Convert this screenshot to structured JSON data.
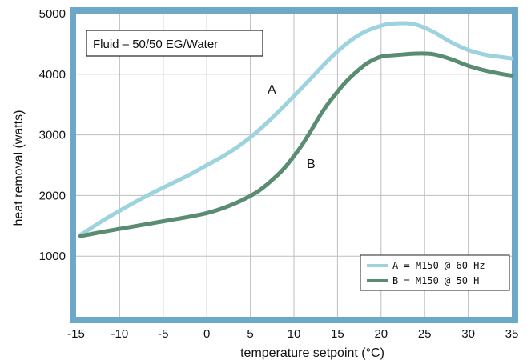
{
  "chart_data": {
    "type": "line",
    "title": "",
    "xlabel": "temperature setpoint (°C)",
    "ylabel": "heat removal (watts)",
    "xlim": [
      -15,
      35
    ],
    "ylim": [
      0,
      5000
    ],
    "xticks": [
      -15,
      -10,
      -5,
      0,
      5,
      10,
      15,
      20,
      25,
      30,
      35
    ],
    "yticks": [
      1000,
      2000,
      3000,
      4000,
      5000
    ],
    "grid": true,
    "annotation": "Fluid – 50/50 EG/Water",
    "legend_position": "bottom-right",
    "series": [
      {
        "name": "A = M150 @ 60 Hz",
        "label": "A",
        "color": "#9dd3df",
        "x": [
          -14.5,
          -12,
          -10,
          -8,
          -6,
          -4,
          -2,
          0,
          2,
          4,
          6,
          8,
          10,
          12,
          14,
          16,
          18,
          20,
          21,
          22,
          23,
          24,
          26,
          28,
          30,
          32,
          34,
          35
        ],
        "y": [
          1350,
          1580,
          1750,
          1910,
          2060,
          2200,
          2340,
          2500,
          2660,
          2850,
          3080,
          3350,
          3640,
          3940,
          4240,
          4500,
          4690,
          4800,
          4830,
          4840,
          4840,
          4820,
          4700,
          4530,
          4400,
          4320,
          4280,
          4260
        ]
      },
      {
        "name": "B = M150 @ 50 H",
        "label": "B",
        "color": "#5a8c72",
        "x": [
          -14.5,
          -12,
          -10,
          -8,
          -6,
          -4,
          -2,
          0,
          2,
          4,
          6,
          8,
          9,
          10,
          11,
          12,
          13,
          14,
          16,
          18,
          19,
          20,
          21,
          22,
          24,
          26,
          28,
          30,
          32,
          34,
          35
        ],
        "y": [
          1330,
          1400,
          1450,
          1500,
          1550,
          1600,
          1650,
          1710,
          1800,
          1920,
          2080,
          2320,
          2470,
          2650,
          2850,
          3080,
          3320,
          3530,
          3880,
          4140,
          4230,
          4290,
          4310,
          4320,
          4340,
          4330,
          4250,
          4140,
          4060,
          4000,
          3980
        ]
      }
    ]
  }
}
